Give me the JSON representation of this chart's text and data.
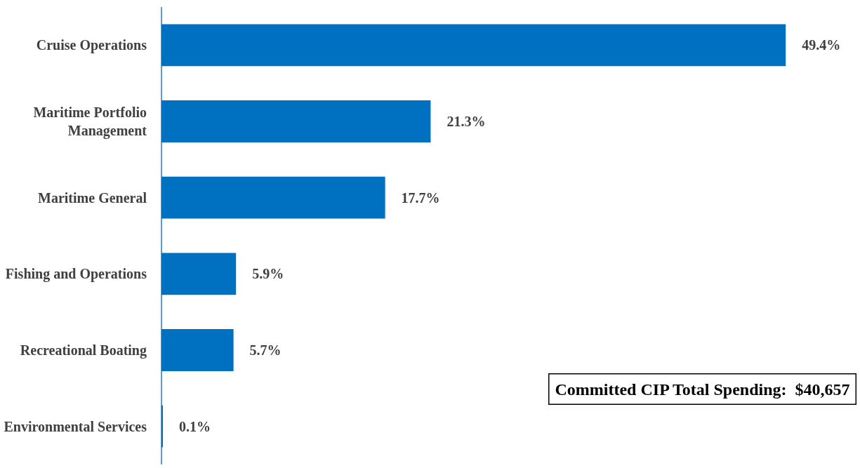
{
  "chart_data": {
    "type": "bar",
    "orientation": "horizontal",
    "categories": [
      "Cruise Operations",
      "Maritime Portfolio\nManagement",
      "Maritime General",
      "Fishing and Operations",
      "Recreational Boating",
      "Environmental Services"
    ],
    "values": [
      49.4,
      21.3,
      17.7,
      5.9,
      5.7,
      0.1
    ],
    "value_labels": [
      "49.4%",
      "21.3%",
      "17.7%",
      "5.9%",
      "5.7%",
      "0.1%"
    ],
    "color": "#0070c0",
    "xlim": [
      0,
      55
    ],
    "tick_labels": "y",
    "annotations": [
      "Committed CIP Total Spending:  $40,657"
    ]
  }
}
